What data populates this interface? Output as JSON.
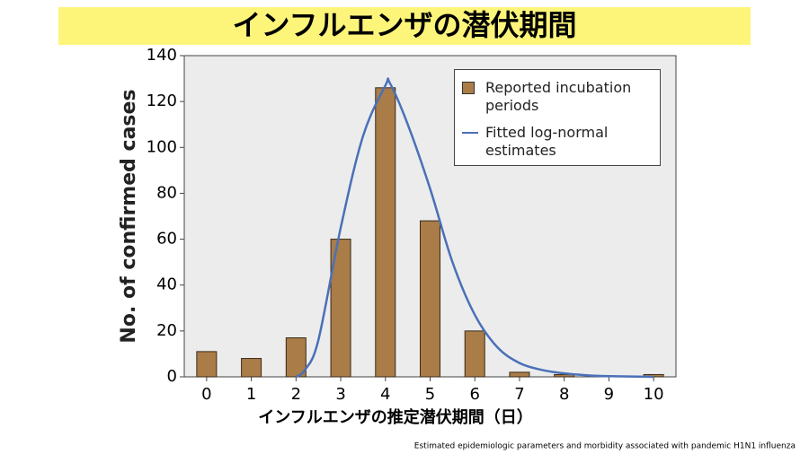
{
  "chart_data": {
    "type": "bar_line",
    "title": "インフルエンザの潜伏期間",
    "x_label": "インフルエンザの推定潜伏期間（日）",
    "y_label": "No. of confirmed cases",
    "source": "Estimated epidemiologic parameters and morbidity associated with pandemic H1N1 influenza",
    "xlim": [
      -0.5,
      10.5
    ],
    "xticks": [
      0,
      1,
      2,
      3,
      4,
      5,
      6,
      7,
      8,
      9,
      10
    ],
    "ylim": [
      0,
      140
    ],
    "yticks": [
      0,
      20,
      40,
      60,
      80,
      100,
      120,
      140
    ],
    "legend": "upper right",
    "bars": {
      "name": "Reported incubation periods",
      "color": "#a97c48",
      "x": [
        0,
        1,
        2,
        3,
        4,
        5,
        6,
        7,
        8,
        9,
        10
      ],
      "values": [
        11,
        8,
        17,
        60,
        126,
        68,
        20,
        2,
        1,
        0,
        1
      ]
    },
    "line": {
      "name": "Fitted log-normal estimates",
      "color": "#4a70b8",
      "x": [
        2,
        2.2,
        2.5,
        3,
        3.5,
        4,
        4.1,
        4.5,
        5,
        5.5,
        6,
        6.5,
        7,
        7.5,
        8,
        8.5,
        9,
        10
      ],
      "values": [
        0,
        3,
        16,
        65,
        105,
        127,
        128,
        110,
        82,
        50,
        27,
        13,
        6,
        3,
        1.5,
        0.7,
        0.3,
        0
      ]
    }
  }
}
